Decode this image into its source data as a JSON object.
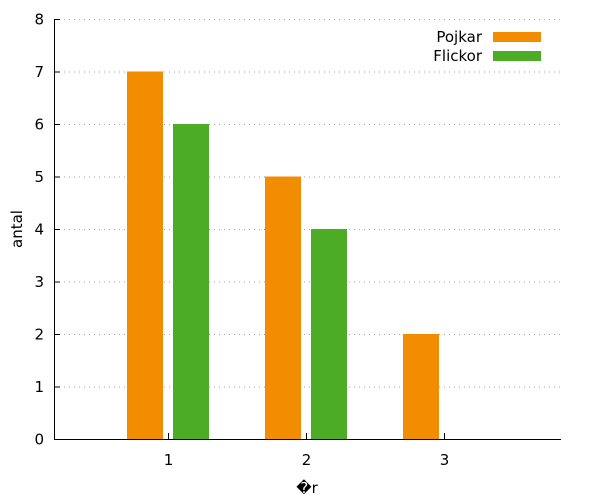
{
  "chart_data": {
    "type": "bar",
    "title": "",
    "xlabel": "�r",
    "ylabel": "antal",
    "categories": [
      "1",
      "2",
      "3"
    ],
    "series": [
      {
        "name": "Pojkar",
        "color": "#f28c00",
        "values": [
          7,
          5,
          2
        ]
      },
      {
        "name": "Flickor",
        "color": "#4dac26",
        "values": [
          6,
          4,
          0
        ]
      }
    ],
    "ylim": [
      0,
      8
    ],
    "yticks": [
      "0",
      "1",
      "2",
      "3",
      "4",
      "5",
      "6",
      "7",
      "8"
    ],
    "grid": true,
    "legend_position": "top-right"
  }
}
